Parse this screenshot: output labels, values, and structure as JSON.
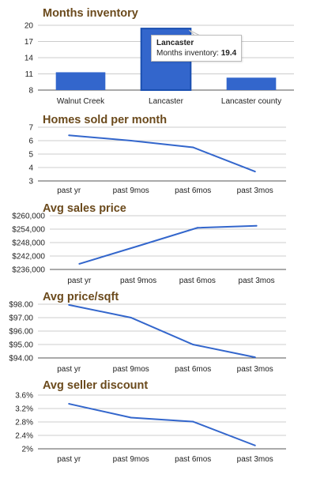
{
  "chart_data": [
    {
      "type": "bar",
      "title": "Months inventory",
      "categories": [
        "Walnut Creek",
        "Lancaster",
        "Lancaster county"
      ],
      "series": [
        {
          "values": [
            11.3,
            19.4,
            10.3
          ]
        }
      ],
      "yticks": [
        "8",
        "11",
        "14",
        "17",
        "20"
      ],
      "ylim": [
        8,
        20
      ],
      "color": "#3366cc",
      "highlight_index": 1,
      "tooltip": {
        "title": "Lancaster",
        "label": "Months inventory",
        "value": "19.4"
      }
    },
    {
      "type": "line",
      "title": "Homes sold per month",
      "categories": [
        "past yr",
        "past 9mos",
        "past 6mos",
        "past 3mos"
      ],
      "series": [
        {
          "values": [
            6.4,
            6.0,
            5.5,
            3.7
          ]
        }
      ],
      "yticks": [
        "3",
        "4",
        "5",
        "6",
        "7"
      ],
      "ylim": [
        3,
        7
      ],
      "color": "#3366cc"
    },
    {
      "type": "line",
      "title": "Avg sales price",
      "categories": [
        "past yr",
        "past 9mos",
        "past 6mos",
        "past 3mos"
      ],
      "series": [
        {
          "values": [
            238500,
            246500,
            254600,
            255500
          ]
        }
      ],
      "yticks": [
        "$236,000",
        "$242,000",
        "$248,000",
        "$254,000",
        "$260,000"
      ],
      "ylim": [
        236000,
        260000
      ],
      "color": "#3366cc"
    },
    {
      "type": "line",
      "title": "Avg price/sqft",
      "categories": [
        "past yr",
        "past 9mos",
        "past 6mos",
        "past 3mos"
      ],
      "series": [
        {
          "values": [
            97.95,
            97.0,
            95.0,
            94.05
          ]
        }
      ],
      "yticks": [
        "$94.00",
        "$95.00",
        "$96.00",
        "$97.00",
        "$98.00"
      ],
      "ylim": [
        94,
        98
      ],
      "color": "#3366cc"
    },
    {
      "type": "line",
      "title": "Avg seller discount",
      "categories": [
        "past yr",
        "past 9mos",
        "past 6mos",
        "past 3mos"
      ],
      "series": [
        {
          "values": [
            3.34,
            2.93,
            2.81,
            2.1
          ]
        }
      ],
      "yticks": [
        "2%",
        "2.4%",
        "2.8%",
        "3.2%",
        "3.6%"
      ],
      "ylim": [
        2,
        3.6
      ],
      "color": "#3366cc"
    }
  ]
}
